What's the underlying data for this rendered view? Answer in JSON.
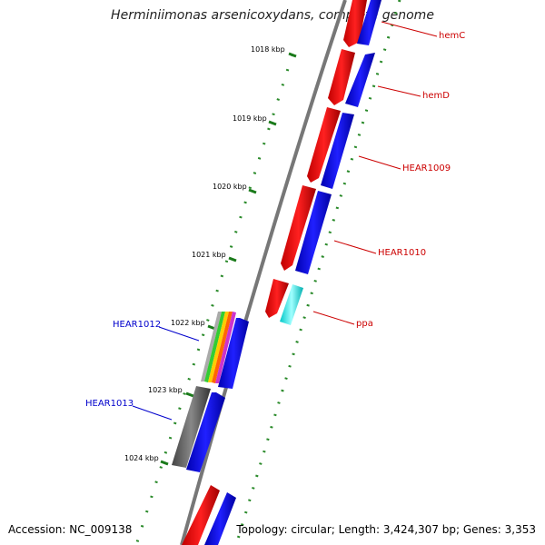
{
  "title": "Herminiimonas arsenicoxydans, complete genome",
  "footer": {
    "accession": "Accession: NC_009138",
    "topology": "Topology: circular; Length: 3,424,307 bp; Genes: 3,353"
  },
  "scale_labels": [
    "1018 kbp",
    "1019 kbp",
    "1020 kbp",
    "1021 kbp",
    "1022 kbp",
    "1023 kbp",
    "1024 kbp"
  ],
  "gene_labels": {
    "forward": [
      "hemC",
      "hemD",
      "HEAR1009",
      "HEAR1010",
      "ppa"
    ],
    "reverse": [
      "HEAR1012",
      "HEAR1013"
    ]
  },
  "colors": {
    "forward_label": "#cc0000",
    "reverse_label": "#0000cc",
    "cds": "#0000ff",
    "gene_red": "#ff0000",
    "rna": "#00ffff",
    "gray": "#666666",
    "scale": "#1a7a1a"
  }
}
